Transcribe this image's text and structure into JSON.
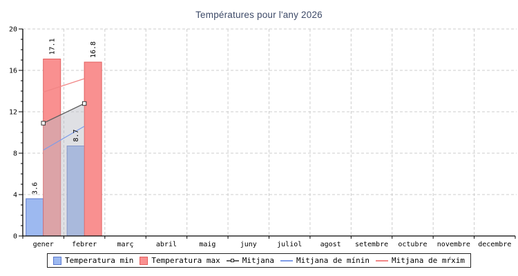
{
  "title": "Températures pour l'any 2026",
  "colors": {
    "title": "#3d4a68",
    "grid": "#cccccc",
    "axis": "#000000",
    "text": "#000000",
    "background": "#ffffff",
    "legend_border": "#222222"
  },
  "chart_data": {
    "type": "bar",
    "title": "Températures pour l'any 2026",
    "categories": [
      "gener",
      "febrer",
      "març",
      "abril",
      "maig",
      "juny",
      "juliol",
      "agost",
      "setembre",
      "octubre",
      "novembre",
      "decembre"
    ],
    "ylim": [
      0,
      20
    ],
    "yticks": [
      0,
      4,
      8,
      12,
      16,
      20
    ],
    "minor_tick_step": 1,
    "grid": true,
    "legend_position": "bottom",
    "bar_value_labels": [
      "3.6",
      "17.1",
      "8.7",
      "16.8"
    ],
    "series": [
      {
        "name": "Temperatura min",
        "kind": "bar",
        "fill": "#9db9f0",
        "stroke": "#5b79cf",
        "values": [
          3.6,
          8.7,
          null,
          null,
          null,
          null,
          null,
          null,
          null,
          null,
          null,
          null
        ]
      },
      {
        "name": "Temperatura max",
        "kind": "bar",
        "fill": "#f99090",
        "stroke": "#e25f5f",
        "values": [
          17.1,
          16.8,
          null,
          null,
          null,
          null,
          null,
          null,
          null,
          null,
          null,
          null
        ]
      },
      {
        "name": "Mitjana",
        "kind": "line",
        "color": "#5f5f5f",
        "marker": "open-square",
        "area_fill": "rgba(184,186,196,0.45)",
        "values": [
          10.9,
          12.8,
          null,
          null,
          null,
          null,
          null,
          null,
          null,
          null,
          null,
          null
        ]
      },
      {
        "name": "Mitjana de mínin",
        "kind": "line",
        "color": "#7e9ce8",
        "values": [
          8.3,
          10.6,
          null,
          null,
          null,
          null,
          null,
          null,
          null,
          null,
          null,
          null
        ]
      },
      {
        "name": "Mitjana de mŕxim",
        "kind": "line",
        "color": "#f18585",
        "values": [
          13.9,
          15.2,
          null,
          null,
          null,
          null,
          null,
          null,
          null,
          null,
          null,
          null
        ]
      }
    ]
  }
}
